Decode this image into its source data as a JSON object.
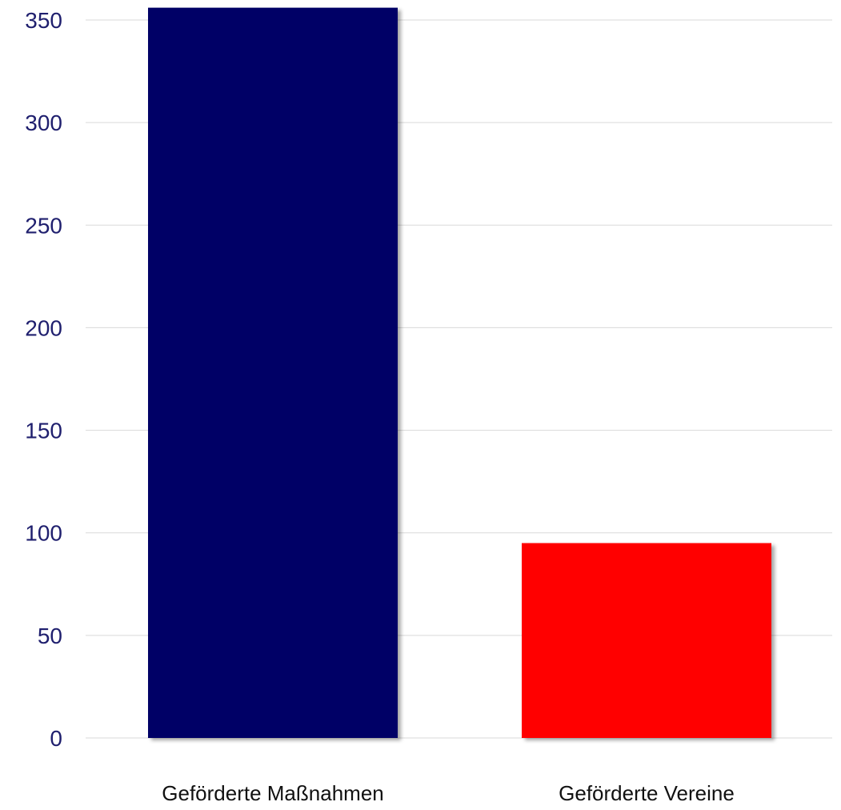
{
  "chart_data": {
    "type": "bar",
    "categories": [
      "Geförderte Maßnahmen",
      "Geförderte Vereine"
    ],
    "values": [
      356,
      95
    ],
    "colors": [
      "#000066",
      "#ff0000"
    ],
    "ylim": [
      0,
      350
    ],
    "yticks": [
      "0",
      "50",
      "100",
      "150",
      "200",
      "250",
      "300",
      "350"
    ],
    "title": "",
    "xlabel": "",
    "ylabel": "",
    "grid": true,
    "legend": "none"
  }
}
